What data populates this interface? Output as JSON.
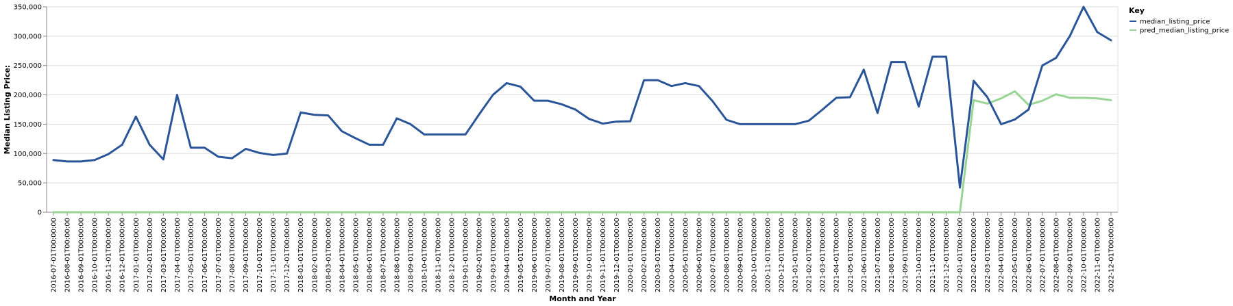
{
  "chart_data": {
    "type": "line",
    "title": "",
    "xlabel": "Month and Year",
    "ylabel": "Median Listing Price:",
    "ylim": [
      0,
      350000
    ],
    "yticks": [
      0,
      50000,
      100000,
      150000,
      200000,
      250000,
      300000,
      350000
    ],
    "ytick_labels": [
      "0",
      "50,000",
      "100,000",
      "150,000",
      "200,000",
      "250,000",
      "300,000",
      "350,000"
    ],
    "grid": true,
    "legend": {
      "title": "Key",
      "position": "top-right"
    },
    "categories": [
      "2016-07-01T00:00:00",
      "2016-08-01T00:00:00",
      "2016-09-01T00:00:00",
      "2016-10-01T00:00:00",
      "2016-11-01T00:00:00",
      "2016-12-01T00:00:00",
      "2017-01-01T00:00:00",
      "2017-02-01T00:00:00",
      "2017-03-01T00:00:00",
      "2017-04-01T00:00:00",
      "2017-05-01T00:00:00",
      "2017-06-01T00:00:00",
      "2017-07-01T00:00:00",
      "2017-08-01T00:00:00",
      "2017-09-01T00:00:00",
      "2017-10-01T00:00:00",
      "2017-11-01T00:00:00",
      "2017-12-01T00:00:00",
      "2018-01-01T00:00:00",
      "2018-02-01T00:00:00",
      "2018-03-01T00:00:00",
      "2018-04-01T00:00:00",
      "2018-05-01T00:00:00",
      "2018-06-01T00:00:00",
      "2018-07-01T00:00:00",
      "2018-08-01T00:00:00",
      "2018-09-01T00:00:00",
      "2018-10-01T00:00:00",
      "2018-11-01T00:00:00",
      "2018-12-01T00:00:00",
      "2019-01-01T00:00:00",
      "2019-02-01T00:00:00",
      "2019-03-01T00:00:00",
      "2019-04-01T00:00:00",
      "2019-05-01T00:00:00",
      "2019-06-01T00:00:00",
      "2019-07-01T00:00:00",
      "2019-08-01T00:00:00",
      "2019-09-01T00:00:00",
      "2019-10-01T00:00:00",
      "2019-11-01T00:00:00",
      "2019-12-01T00:00:00",
      "2020-01-01T00:00:00",
      "2020-02-01T00:00:00",
      "2020-03-01T00:00:00",
      "2020-04-01T00:00:00",
      "2020-05-01T00:00:00",
      "2020-06-01T00:00:00",
      "2020-07-01T00:00:00",
      "2020-08-01T00:00:00",
      "2020-09-01T00:00:00",
      "2020-10-01T00:00:00",
      "2020-11-01T00:00:00",
      "2020-12-01T00:00:00",
      "2021-01-01T00:00:00",
      "2021-02-01T00:00:00",
      "2021-03-01T00:00:00",
      "2021-04-01T00:00:00",
      "2021-05-01T00:00:00",
      "2021-06-01T00:00:00",
      "2021-07-01T00:00:00",
      "2021-08-01T00:00:00",
      "2021-09-01T00:00:00",
      "2021-10-01T00:00:00",
      "2021-11-01T00:00:00",
      "2021-12-01T00:00:00",
      "2022-01-01T00:00:00",
      "2022-02-01T00:00:00",
      "2022-03-01T00:00:00",
      "2022-04-01T00:00:00",
      "2022-05-01T00:00:00",
      "2022-06-01T00:00:00",
      "2022-07-01T00:00:00",
      "2022-08-01T00:00:00",
      "2022-09-01T00:00:00",
      "2022-10-01T00:00:00",
      "2022-11-01T00:00:00",
      "2022-12-01T00:00:00"
    ],
    "series": [
      {
        "name": "median_listing_price",
        "color": "#2a5599",
        "values": [
          89000,
          86500,
          86500,
          89000,
          99000,
          115000,
          163000,
          115000,
          90000,
          200000,
          110000,
          110000,
          94500,
          92000,
          108000,
          101000,
          97500,
          100000,
          170000,
          166000,
          165000,
          138000,
          126000,
          115000,
          115000,
          160000,
          150000,
          132500,
          132500,
          132500,
          132500,
          167000,
          200000,
          220000,
          214000,
          190000,
          190000,
          184000,
          175000,
          159000,
          151000,
          154500,
          155000,
          225000,
          225000,
          215000,
          220000,
          215000,
          189000,
          157500,
          150000,
          150000,
          150000,
          150000,
          150000,
          156000,
          175000,
          195000,
          196000,
          243000,
          169000,
          256000,
          256000,
          180000,
          265000,
          265000,
          42000,
          224000,
          196000,
          150000,
          158000,
          175000,
          250000,
          263000,
          300000,
          350000,
          307000,
          293000
        ]
      },
      {
        "name": "pred_median_listing_price",
        "color": "#98d594",
        "values": [
          0,
          0,
          0,
          0,
          0,
          0,
          0,
          0,
          0,
          0,
          0,
          0,
          0,
          0,
          0,
          0,
          0,
          0,
          0,
          0,
          0,
          0,
          0,
          0,
          0,
          0,
          0,
          0,
          0,
          0,
          0,
          0,
          0,
          0,
          0,
          0,
          0,
          0,
          0,
          0,
          0,
          0,
          0,
          0,
          0,
          0,
          0,
          0,
          0,
          0,
          0,
          0,
          0,
          0,
          0,
          0,
          0,
          0,
          0,
          0,
          0,
          0,
          0,
          0,
          0,
          0,
          0,
          191000,
          185000,
          194000,
          206000,
          183000,
          190000,
          201000,
          195000,
          195000,
          194000,
          191000
        ]
      }
    ]
  }
}
